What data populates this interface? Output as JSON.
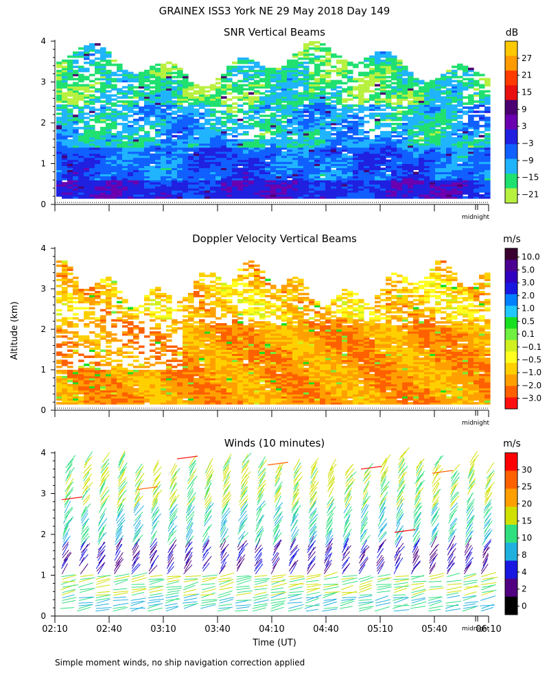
{
  "title": "GRAINEX ISS3 York NE  29 May 2018 Day 149",
  "ylabel": "Altitude (km)",
  "xlabel": "Time (UT)",
  "footnote": "Simple moment winds, no ship navigation correction applied",
  "midnight_label": "midnight",
  "x_ticks": [
    "02:10",
    "02:40",
    "03:10",
    "03:40",
    "04:10",
    "04:40",
    "05:10",
    "05:40",
    "06:10"
  ],
  "y_ticks": [
    "0",
    "1",
    "2",
    "3",
    "4"
  ],
  "chart_data": [
    {
      "type": "heatmap",
      "title": "SNR Vertical Beams",
      "unit": "dB",
      "ylim": [
        0,
        4
      ],
      "xlim": [
        "02:10",
        "06:10"
      ],
      "colorbar": {
        "labels": [
          "27",
          "21",
          "15",
          "9",
          "3",
          "−3",
          "−9",
          "−15",
          "−21"
        ],
        "colors": [
          "#ffc800",
          "#ff9a00",
          "#ff3b00",
          "#e81010",
          "#4a0070",
          "#6a00b0",
          "#2020e0",
          "#1060ff",
          "#20b4ff",
          "#20e070",
          "#b8f040"
        ]
      }
    },
    {
      "type": "heatmap",
      "title": "Doppler Velocity Vertical Beams",
      "unit": "m/s",
      "ylim": [
        0,
        4
      ],
      "xlim": [
        "02:10",
        "06:10"
      ],
      "colorbar": {
        "labels": [
          "10.0",
          "5.0",
          "3.0",
          "2.0",
          "1.0",
          "0.5",
          "0.1",
          "−0.1",
          "−0.5",
          "−1.0",
          "−2.0",
          "−3.0"
        ],
        "colors": [
          "#3a0030",
          "#4a0090",
          "#3000c0",
          "#1818e0",
          "#0080ff",
          "#20c8ff",
          "#18e020",
          "#70f040",
          "#d0f020",
          "#ffff20",
          "#ffd000",
          "#ffa000",
          "#ff6000",
          "#ff1010"
        ]
      }
    },
    {
      "type": "scatter",
      "title": "Winds (10 minutes)",
      "unit": "m/s",
      "ylim": [
        0,
        4
      ],
      "xlim": [
        "02:10",
        "06:10"
      ],
      "colorbar": {
        "labels": [
          "30",
          "25",
          "20",
          "15",
          "10",
          "8",
          "4",
          "2",
          "0"
        ],
        "colors": [
          "#ff0000",
          "#ff6000",
          "#ffa000",
          "#d0e000",
          "#30e080",
          "#20b0e0",
          "#1818e0",
          "#500080",
          "#000000"
        ]
      }
    }
  ]
}
